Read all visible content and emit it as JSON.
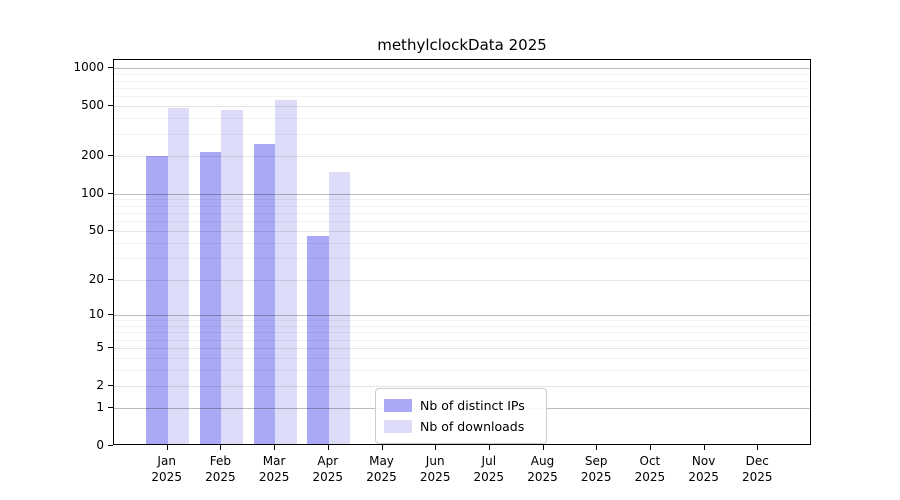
{
  "chart_data": {
    "type": "bar",
    "title": "methylclockData 2025",
    "categories": [
      "Jan 2025",
      "Feb 2025",
      "Mar 2025",
      "Apr 2025",
      "May 2025",
      "Jun 2025",
      "Jul 2025",
      "Aug 2025",
      "Sep 2025",
      "Oct 2025",
      "Nov 2025",
      "Dec 2025"
    ],
    "series": [
      {
        "name": "Nb of distinct IPs",
        "color": "#a9a9f6",
        "values": [
          194,
          207,
          241,
          44,
          0,
          0,
          0,
          0,
          0,
          0,
          0,
          0
        ]
      },
      {
        "name": "Nb of downloads",
        "color": "#dcdcf8",
        "values": [
          470,
          450,
          540,
          145,
          0,
          0,
          0,
          0,
          0,
          0,
          0,
          0
        ]
      }
    ],
    "xlabel": "",
    "ylabel": "",
    "yscale": "log1p",
    "ylim": [
      0,
      1165
    ],
    "yticks": [
      0,
      1,
      2,
      5,
      10,
      20,
      50,
      100,
      200,
      500,
      1000
    ],
    "emphasized_yticks": [
      1,
      10,
      100,
      1000
    ],
    "grid": {
      "horizontal": true,
      "minor": true,
      "above_bars": true
    },
    "legend": {
      "position": "lower-center-inside"
    },
    "colors": {
      "grid_major_emphasized": "rgba(0,0,0,0.26)",
      "grid_major": "rgba(0,0,0,0.10)",
      "grid_minor": "rgba(0,0,0,0.05)",
      "spine": "#000000"
    }
  }
}
